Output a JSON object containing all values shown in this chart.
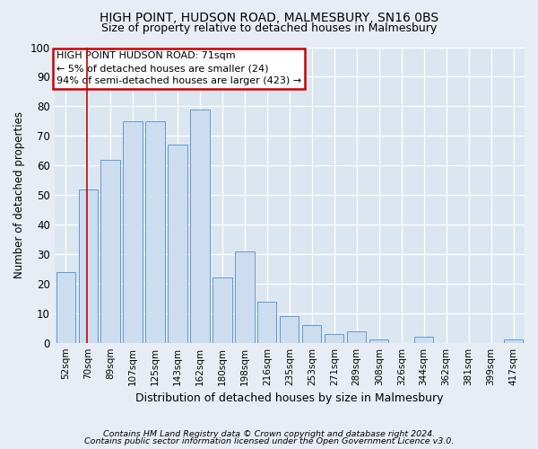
{
  "title": "HIGH POINT, HUDSON ROAD, MALMESBURY, SN16 0BS",
  "subtitle": "Size of property relative to detached houses in Malmesbury",
  "xlabel": "Distribution of detached houses by size in Malmesbury",
  "ylabel": "Number of detached properties",
  "categories": [
    "52sqm",
    "70sqm",
    "89sqm",
    "107sqm",
    "125sqm",
    "143sqm",
    "162sqm",
    "180sqm",
    "198sqm",
    "216sqm",
    "235sqm",
    "253sqm",
    "271sqm",
    "289sqm",
    "308sqm",
    "326sqm",
    "344sqm",
    "362sqm",
    "381sqm",
    "399sqm",
    "417sqm"
  ],
  "values": [
    24,
    52,
    62,
    75,
    75,
    67,
    79,
    22,
    31,
    14,
    9,
    6,
    3,
    4,
    1,
    0,
    2,
    0,
    0,
    0,
    1
  ],
  "bar_color": "#ccddf0",
  "bar_edge_color": "#6699cc",
  "ylim": [
    0,
    100
  ],
  "yticks": [
    0,
    10,
    20,
    30,
    40,
    50,
    60,
    70,
    80,
    90,
    100
  ],
  "property_line_x": 0.97,
  "annotation_title": "HIGH POINT HUDSON ROAD: 71sqm",
  "annotation_line1": "← 5% of detached houses are smaller (24)",
  "annotation_line2": "94% of semi-detached houses are larger (423) →",
  "annotation_box_color": "#ffffff",
  "annotation_border_color": "#cc0000",
  "property_line_color": "#cc0000",
  "footnote1": "Contains HM Land Registry data © Crown copyright and database right 2024.",
  "footnote2": "Contains public sector information licensed under the Open Government Licence v3.0.",
  "fig_background_color": "#e8edf5",
  "plot_background_color": "#dce6f0"
}
